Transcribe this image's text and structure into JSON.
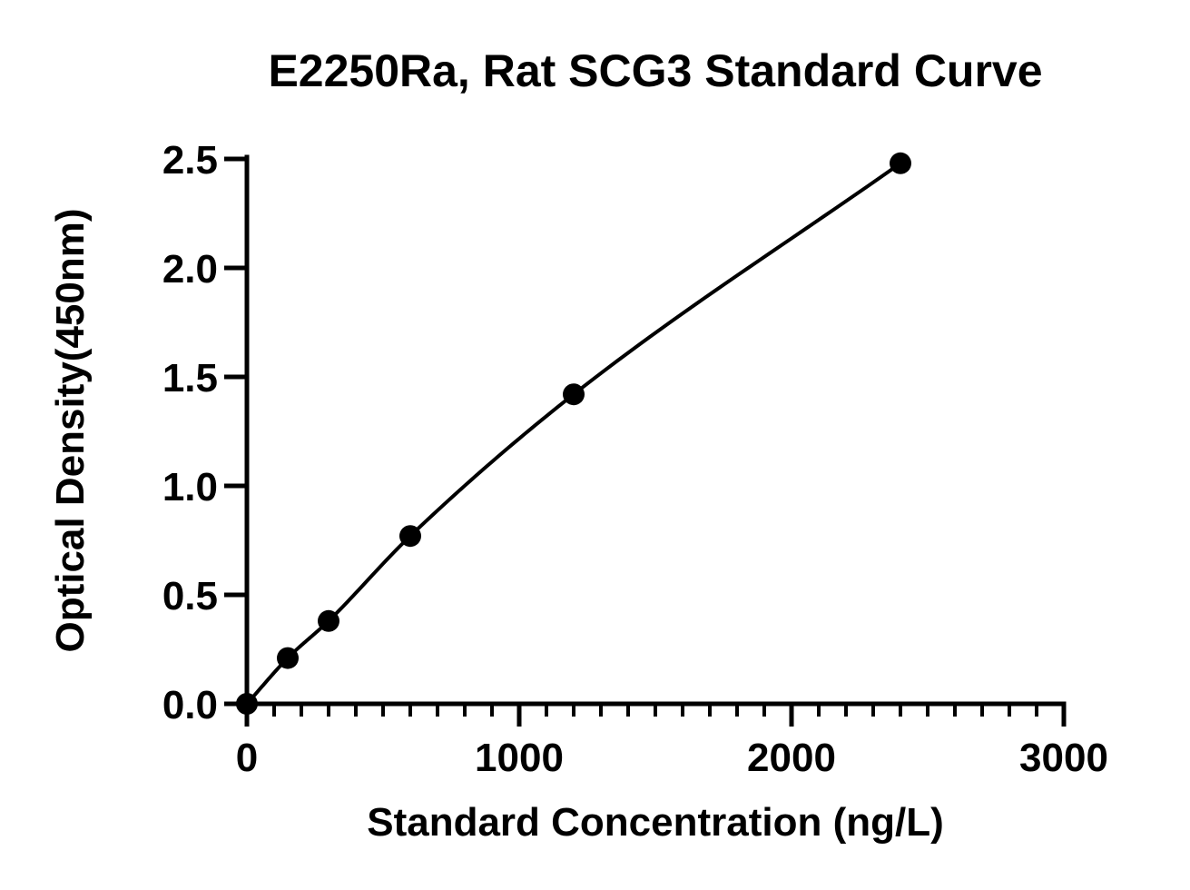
{
  "chart_data": {
    "type": "scatter",
    "title": "E2250Ra, Rat SCG3 Standard Curve",
    "xlabel": "Standard Concentration (ng/L)",
    "ylabel": "Optical Density(450nm)",
    "xlim": [
      0,
      3000
    ],
    "ylim": [
      0,
      2.5
    ],
    "x_ticks": [
      0,
      1000,
      2000,
      3000
    ],
    "x_tick_labels": [
      "0",
      "1000",
      "2000",
      "3000"
    ],
    "x_minor_step": 100,
    "y_ticks": [
      0,
      0.5,
      1.0,
      1.5,
      2.0,
      2.5
    ],
    "y_tick_labels": [
      "0.0",
      "0.5",
      "1.0",
      "1.5",
      "2.0",
      "2.5"
    ],
    "grid": false,
    "series": [
      {
        "points": [
          {
            "x": 0,
            "y": 0.0
          },
          {
            "x": 150,
            "y": 0.21
          },
          {
            "x": 300,
            "y": 0.38
          },
          {
            "x": 600,
            "y": 0.77
          },
          {
            "x": 1200,
            "y": 1.42
          },
          {
            "x": 2400,
            "y": 2.48
          }
        ],
        "marker": "circle",
        "fit_curve": true,
        "color": "#000000"
      }
    ]
  }
}
